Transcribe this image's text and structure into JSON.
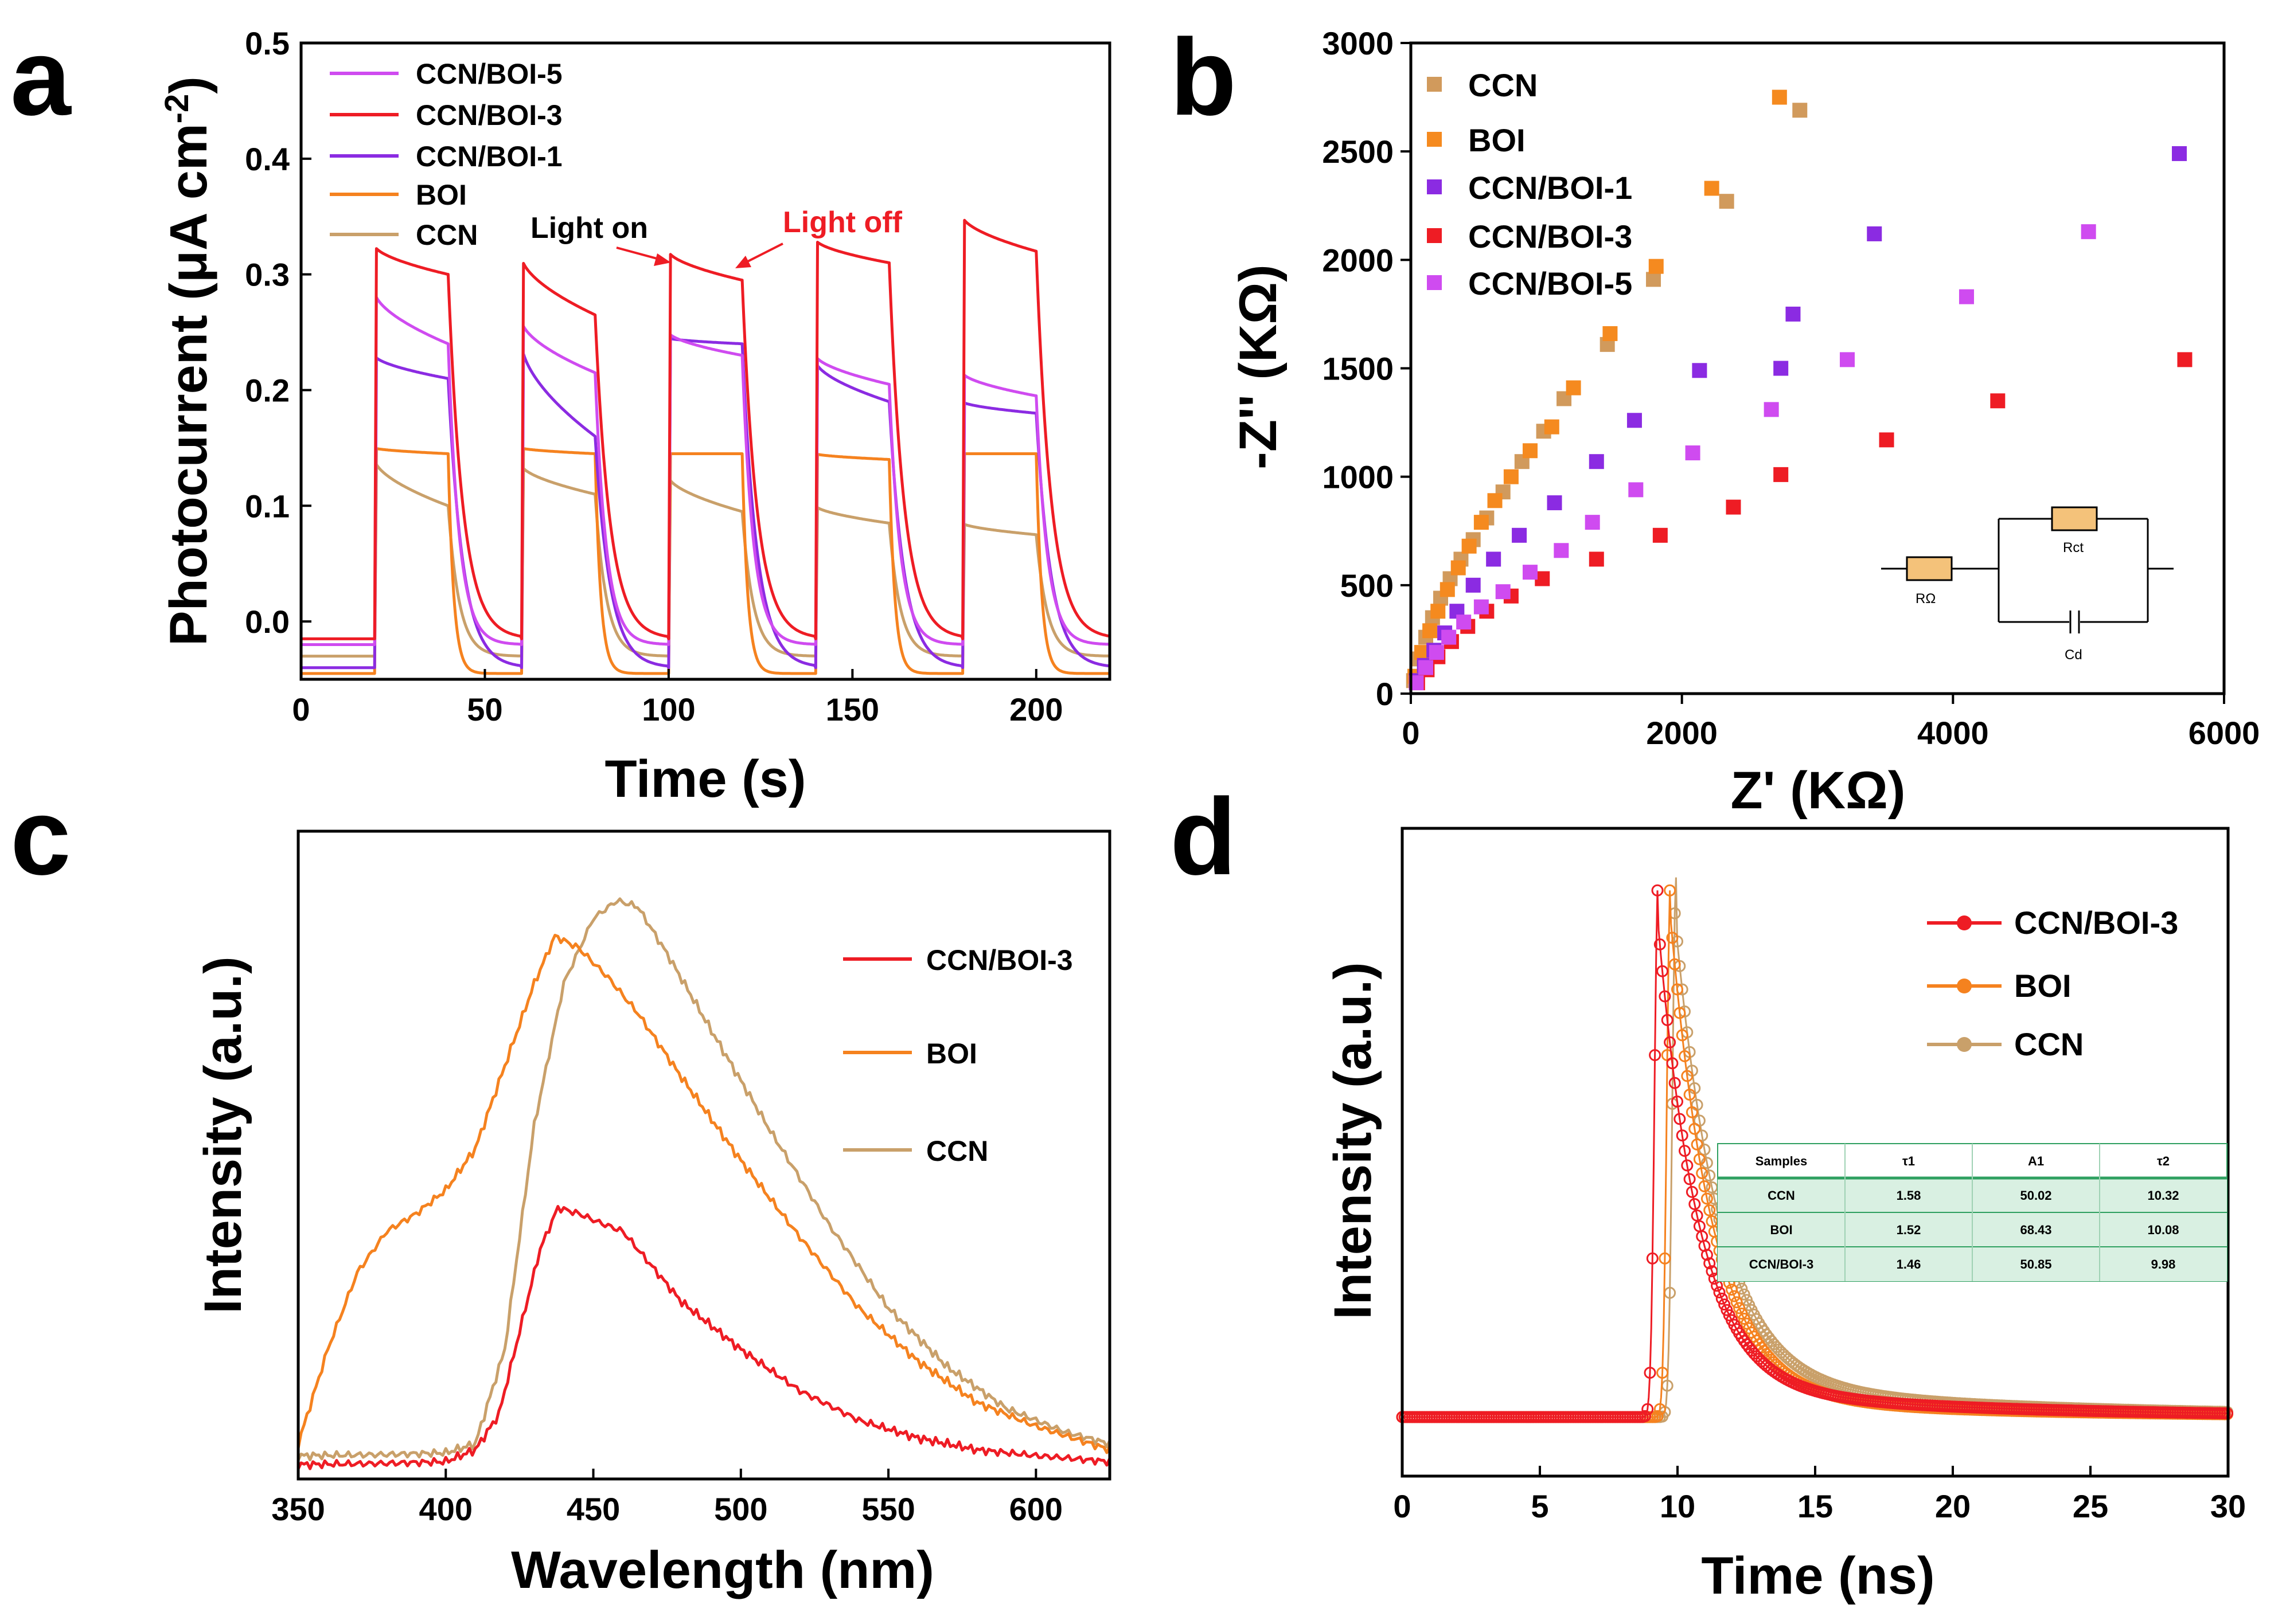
{
  "colors": {
    "ccn": "#c9a06a",
    "boi": "#f5821f",
    "ccn_boi_1": "#8b2be2",
    "ccn_boi_3": "#ee1c24",
    "ccn_boi_5": "#cf4bf0",
    "ccn_scatter": "#d19a5c",
    "boi_scatter": "#f58a1f",
    "light_off_text": "#ee1c24",
    "table_fill": "#d9f0e2",
    "table_line": "#2fa060"
  },
  "chart_data": [
    {
      "panel": "a",
      "type": "line",
      "xlabel": "Time (s)",
      "ylabel": "Photocurrent (μA cm",
      "ylabel_sup": "-2",
      "ylabel_close": ")",
      "xlim": [
        0,
        220
      ],
      "ylim": [
        -0.05,
        0.5
      ],
      "xticks": [
        "0",
        "50",
        "100",
        "150",
        "200"
      ],
      "xtick_values": [
        0,
        50,
        100,
        150,
        200
      ],
      "yticks": [
        "0.0",
        "0.1",
        "0.2",
        "0.3",
        "0.4",
        "0.5"
      ],
      "ytick_values": [
        0.0,
        0.1,
        0.2,
        0.3,
        0.4,
        0.5
      ],
      "legend": [
        "CCN/BOI-5",
        "CCN/BOI-3",
        "CCN/BOI-1",
        "BOI",
        "CCN"
      ],
      "annotations": {
        "light_on": "Light on",
        "light_off": "Light off"
      },
      "cycles": [
        [
          20,
          40
        ],
        [
          60,
          80
        ],
        [
          100,
          120
        ],
        [
          140,
          160
        ],
        [
          180,
          200
        ]
      ],
      "series": [
        {
          "name": "CCN/BOI-5",
          "color_key": "ccn_boi_5",
          "baseline": -0.02,
          "on_start": [
            0.285,
            0.26,
            0.25,
            0.23,
            0.215
          ],
          "on_end": [
            0.24,
            0.215,
            0.23,
            0.205,
            0.195
          ],
          "tau_on": 3,
          "tau_off": 3
        },
        {
          "name": "CCN/BOI-3",
          "color_key": "ccn_boi_3",
          "baseline": -0.015,
          "on_start": [
            0.325,
            0.315,
            0.32,
            0.33,
            0.35
          ],
          "on_end": [
            0.3,
            0.265,
            0.295,
            0.31,
            0.32
          ],
          "tau_on": 2,
          "tau_off": 4
        },
        {
          "name": "CCN/BOI-1",
          "color_key": "ccn_boi_1",
          "baseline": -0.04,
          "on_start": [
            0.23,
            0.24,
            0.245,
            0.225,
            0.19
          ],
          "on_end": [
            0.21,
            0.16,
            0.24,
            0.19,
            0.18
          ],
          "tau_on": 3,
          "tau_off": 4
        },
        {
          "name": "BOI",
          "color_key": "boi",
          "baseline": -0.045,
          "on_start": [
            0.15,
            0.15,
            0.145,
            0.145,
            0.145
          ],
          "on_end": [
            0.145,
            0.145,
            0.145,
            0.14,
            0.145
          ],
          "tau_on": 1,
          "tau_off": 1.5
        },
        {
          "name": "CCN",
          "color_key": "ccn",
          "baseline": -0.03,
          "on_start": [
            0.14,
            0.135,
            0.125,
            0.1,
            0.085
          ],
          "on_end": [
            0.1,
            0.11,
            0.095,
            0.085,
            0.075
          ],
          "tau_on": 2,
          "tau_off": 3
        }
      ]
    },
    {
      "panel": "b",
      "type": "scatter",
      "xlabel": "Z' (KΩ)",
      "ylabel": "-Z'' (KΩ)",
      "xlim": [
        0,
        6000
      ],
      "ylim": [
        0,
        3000
      ],
      "xticks": [
        "0",
        "2000",
        "4000",
        "6000"
      ],
      "xtick_values": [
        0,
        2000,
        4000,
        6000
      ],
      "yticks": [
        "0",
        "500",
        "1000",
        "1500",
        "2000",
        "2500",
        "3000"
      ],
      "ytick_values": [
        0,
        500,
        1000,
        1500,
        2000,
        2500,
        3000
      ],
      "legend": [
        "CCN",
        "BOI",
        "CCN/BOI-1",
        "CCN/BOI-3",
        "CCN/BOI-5"
      ],
      "circuit_labels": {
        "r_omega": "RΩ",
        "r_ct": "Rct",
        "c_d": "Cd"
      },
      "series": [
        {
          "name": "CCN",
          "color_key": "ccn_scatter",
          "x": [
            20,
            60,
            110,
            160,
            220,
            290,
            370,
            460,
            560,
            680,
            820,
            980,
            1130,
            1450,
            1790,
            2330,
            2870
          ],
          "y": [
            60,
            160,
            260,
            350,
            440,
            530,
            620,
            710,
            810,
            930,
            1070,
            1210,
            1360,
            1610,
            1910,
            2270,
            2690
          ]
        },
        {
          "name": "BOI",
          "color_key": "boi_scatter",
          "x": [
            30,
            80,
            140,
            200,
            270,
            350,
            430,
            520,
            620,
            740,
            880,
            1040,
            1200,
            1470,
            1810,
            2220,
            2720
          ],
          "y": [
            80,
            190,
            290,
            380,
            480,
            580,
            680,
            790,
            890,
            1000,
            1120,
            1230,
            1410,
            1660,
            1970,
            2330,
            2750
          ]
        },
        {
          "name": "CCN/BOI-1",
          "color_key": "ccn_boi_1",
          "x": [
            40,
            100,
            170,
            250,
            340,
            460,
            610,
            800,
            1060,
            1370,
            1650,
            2130,
            2730,
            2820,
            3420,
            5670
          ],
          "y": [
            60,
            130,
            200,
            280,
            380,
            500,
            620,
            730,
            880,
            1070,
            1260,
            1490,
            1500,
            1750,
            2120,
            2490
          ]
        },
        {
          "name": "CCN/BOI-3",
          "color_key": "ccn_boi_3",
          "x": [
            50,
            120,
            200,
            300,
            420,
            560,
            740,
            970,
            1370,
            1840,
            2380,
            2730,
            3510,
            4330,
            5710
          ],
          "y": [
            50,
            110,
            170,
            240,
            310,
            380,
            450,
            530,
            620,
            730,
            860,
            1010,
            1170,
            1350,
            1540
          ]
        },
        {
          "name": "CCN/BOI-5",
          "color_key": "ccn_boi_5",
          "x": [
            40,
            110,
            190,
            280,
            390,
            520,
            680,
            880,
            1110,
            1340,
            1660,
            2080,
            2660,
            3220,
            4100,
            5000
          ],
          "y": [
            50,
            120,
            190,
            260,
            330,
            400,
            470,
            560,
            660,
            790,
            940,
            1110,
            1310,
            1540,
            1830,
            2130
          ]
        }
      ]
    },
    {
      "panel": "c",
      "type": "line",
      "xlabel": "Wavelength (nm)",
      "ylabel": "Intensity (a.u.)",
      "xlim": [
        350,
        625
      ],
      "ylim": [
        0,
        1
      ],
      "xticks": [
        "350",
        "400",
        "450",
        "500",
        "550",
        "600"
      ],
      "xtick_values": [
        350,
        400,
        450,
        500,
        550,
        600
      ],
      "legend": [
        "CCN/BOI-3",
        "BOI",
        "CCN"
      ],
      "series": [
        {
          "name": "CCN/BOI-3",
          "color_key": "ccn_boi_3",
          "x": [
            350,
            380,
            400,
            410,
            418,
            425,
            432,
            438,
            445,
            452,
            460,
            470,
            480,
            490,
            500,
            520,
            540,
            560,
            580,
            600,
            625
          ],
          "y": [
            0.005,
            0.007,
            0.01,
            0.03,
            0.09,
            0.23,
            0.37,
            0.44,
            0.43,
            0.415,
            0.4,
            0.34,
            0.28,
            0.24,
            0.2,
            0.13,
            0.08,
            0.05,
            0.03,
            0.02,
            0.01
          ]
        },
        {
          "name": "BOI",
          "color_key": "boi",
          "x": [
            350,
            360,
            370,
            380,
            390,
            400,
            410,
            420,
            430,
            437,
            445,
            455,
            465,
            480,
            500,
            520,
            540,
            560,
            580,
            600,
            625
          ],
          "y": [
            0.04,
            0.2,
            0.33,
            0.4,
            0.43,
            0.47,
            0.54,
            0.68,
            0.82,
            0.9,
            0.88,
            0.83,
            0.77,
            0.66,
            0.52,
            0.39,
            0.27,
            0.18,
            0.11,
            0.07,
            0.03
          ]
        },
        {
          "name": "CCN",
          "color_key": "ccn",
          "x": [
            350,
            380,
            400,
            410,
            420,
            430,
            440,
            450,
            458,
            465,
            475,
            490,
            510,
            530,
            550,
            570,
            590,
            610,
            625
          ],
          "y": [
            0.02,
            0.022,
            0.025,
            0.04,
            0.2,
            0.58,
            0.82,
            0.93,
            0.96,
            0.95,
            0.87,
            0.74,
            0.57,
            0.41,
            0.27,
            0.17,
            0.1,
            0.06,
            0.04
          ]
        }
      ]
    },
    {
      "panel": "d",
      "type": "line",
      "xlabel": "Time (ns)",
      "ylabel": "Intensity (a.u.)",
      "xlim": [
        0,
        30
      ],
      "ylim": [
        0,
        1
      ],
      "xticks": [
        "0",
        "5",
        "10",
        "15",
        "20",
        "25",
        "30"
      ],
      "xtick_values": [
        0,
        5,
        10,
        15,
        20,
        25,
        30
      ],
      "legend": [
        "CCN/BOI-3",
        "BOI",
        "CCN"
      ],
      "series": [
        {
          "name": "CCN",
          "color_key": "ccn",
          "peak": 9.95,
          "rise": 0.18,
          "tau1": 1.58,
          "tau2": 10.32,
          "a1": 0.88
        },
        {
          "name": "BOI",
          "color_key": "boi",
          "peak": 9.75,
          "rise": 0.18,
          "tau1": 1.52,
          "tau2": 10.08,
          "a1": 0.93
        },
        {
          "name": "CCN/BOI-3",
          "color_key": "ccn_boi_3",
          "peak": 9.3,
          "rise": 0.18,
          "tau1": 1.46,
          "tau2": 9.98,
          "a1": 0.9
        }
      ],
      "table": {
        "headers": [
          "Samples",
          "τ1",
          "A1",
          "τ2"
        ],
        "rows": [
          [
            "CCN",
            "1.58",
            "50.02",
            "10.32"
          ],
          [
            "BOI",
            "1.52",
            "68.43",
            "10.08"
          ],
          [
            "CCN/BOI-3",
            "1.46",
            "50.85",
            "9.98"
          ]
        ]
      }
    }
  ],
  "panel_letters": [
    "a",
    "b",
    "c",
    "d"
  ]
}
